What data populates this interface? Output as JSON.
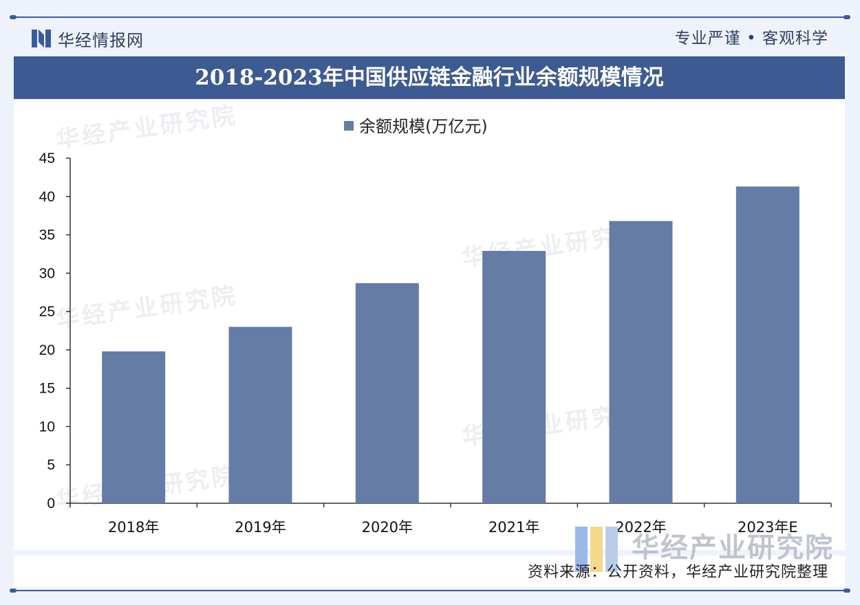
{
  "header": {
    "brand": "华经情报网",
    "slogan": "专业严谨 • 客观科学",
    "title": "2018-2023年中国供应链金融行业余额规模情况"
  },
  "watermark": {
    "text": "华经产业研究院",
    "logo_text": "华经产业研究院"
  },
  "footer": {
    "source": "资料来源：公开资料，华经产业研究院整理"
  },
  "colors": {
    "bar": "#647ca6",
    "title_bar": "#3d5a92",
    "accent": "#3a5a9c"
  },
  "chart_data": {
    "type": "bar",
    "categories": [
      "2018年",
      "2019年",
      "2020年",
      "2021年",
      "2022年",
      "2023年E"
    ],
    "series": [
      {
        "name": "余额规模(万亿元)",
        "values": [
          19.8,
          23.0,
          28.7,
          32.9,
          36.8,
          41.3
        ]
      }
    ],
    "ylim": [
      0,
      45
    ],
    "yticks": [
      0,
      5,
      10,
      15,
      20,
      25,
      30,
      35,
      40,
      45
    ],
    "legend": "top-center",
    "grid": false
  }
}
